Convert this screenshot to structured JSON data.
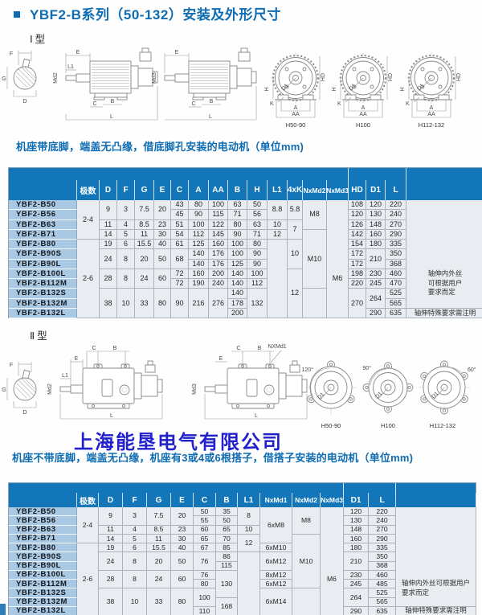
{
  "title": {
    "text": "YBF2-B系列（50-132）安装及外形尺寸"
  },
  "sections": {
    "type1_label": "Ⅰ型",
    "type2_label": "Ⅱ型",
    "caption1": "机座带底脚，端盖无凸缘，借底脚孔安装的电动机（单位mm)",
    "caption2": "机座不带底脚，端盖无凸缘，机座有3或4或6根搭子，借搭子安装的电动机（单位mm)",
    "company": "上海能垦电气有限公司"
  },
  "drawing1": {
    "shaft": {
      "f": "F",
      "g": "G",
      "d": "D"
    },
    "motor1": {
      "e": "E",
      "l1": "L1",
      "md": "Md2",
      "c": "C",
      "b": "B",
      "l": "L"
    },
    "motor2": {
      "e": "E",
      "md": "Md3",
      "c": "C",
      "b": "B",
      "l": "L"
    },
    "views": [
      {
        "h": "H",
        "k": "K",
        "a": "A",
        "aa": "AA",
        "hd": "HD",
        "d1": "D1",
        "caption": "H50-90"
      },
      {
        "h": "H",
        "k": "K",
        "a": "A",
        "aa": "AA",
        "hd": "HD",
        "d1": "D1",
        "caption": "H100"
      },
      {
        "h": "H",
        "k": "K",
        "a": "A",
        "aa": "AA",
        "hd": "HD",
        "d1": "D1",
        "caption": "H112-132"
      }
    ]
  },
  "drawing2": {
    "shaft": {
      "f": "F",
      "g": "G",
      "d": "D"
    },
    "motor1": {
      "e": "E",
      "l1": "L1",
      "md": "Md2",
      "c": "C",
      "b": "B",
      "l": "L"
    },
    "motor2": {
      "e": "E",
      "md": "Md3",
      "c": "C",
      "b": "B",
      "l": "L",
      "nxmd1": "NXMd1"
    },
    "views": [
      {
        "angle": "120°",
        "d1": "D1",
        "caption": "H50-90"
      },
      {
        "angle": "90°",
        "d1": "D1",
        "caption": "H100"
      },
      {
        "angle": "60°",
        "d1": "D1",
        "caption": "H112-132"
      }
    ]
  },
  "table1": {
    "name": "type1-dimensions-table",
    "columns": [
      {
        "key": "model",
        "label": ""
      },
      {
        "key": "jishu",
        "label": "极数"
      },
      {
        "key": "D",
        "label": "D"
      },
      {
        "key": "F",
        "label": "F"
      },
      {
        "key": "G",
        "label": "G"
      },
      {
        "key": "E",
        "label": "E"
      },
      {
        "key": "C",
        "label": "C"
      },
      {
        "key": "A",
        "label": "A"
      },
      {
        "key": "AA",
        "label": "AA"
      },
      {
        "key": "B",
        "label": "B"
      },
      {
        "key": "H",
        "label": "H"
      },
      {
        "key": "L1",
        "label": "L1"
      },
      {
        "key": "K4",
        "label": "4xK"
      },
      {
        "key": "NxMd2",
        "label": "NxMd2"
      },
      {
        "key": "NxMd3",
        "label": "NxMd3"
      },
      {
        "key": "HD",
        "label": "HD"
      },
      {
        "key": "D1",
        "label": "D1"
      },
      {
        "key": "L",
        "label": "L"
      },
      {
        "key": "remark",
        "label": ""
      }
    ],
    "models": [
      "YBF2-B50",
      "YBF2-B56",
      "YBF2-B63",
      "YBF2-B71",
      "YBF2-B80",
      "YBF2-B90S",
      "YBF2-B90L",
      "YBF2-B100L",
      "YBF2-B112M",
      "YBF2-B132S",
      "YBF2-B132M",
      "YBF2-B132L"
    ],
    "cells": {
      "jishu": [
        {
          "v": "2-4",
          "s": 4
        },
        {
          "v": "2-6",
          "s": 8
        }
      ],
      "D": [
        {
          "v": "9",
          "s": 2
        },
        {
          "v": "11"
        },
        {
          "v": "14"
        },
        {
          "v": "19"
        },
        {
          "v": "24",
          "s": 2
        },
        {
          "v": "28",
          "s": 2
        },
        {
          "v": "38",
          "s": 3
        }
      ],
      "F": [
        {
          "v": "3",
          "s": 2
        },
        {
          "v": "4"
        },
        {
          "v": "5"
        },
        {
          "v": "6"
        },
        {
          "v": "8",
          "s": 2
        },
        {
          "v": "8",
          "s": 2
        },
        {
          "v": "10",
          "s": 3
        }
      ],
      "G": [
        {
          "v": "7.5",
          "s": 2
        },
        {
          "v": "8.5"
        },
        {
          "v": "11"
        },
        {
          "v": "15.5"
        },
        {
          "v": "20",
          "s": 2
        },
        {
          "v": "24",
          "s": 2
        },
        {
          "v": "33",
          "s": 3
        }
      ],
      "E": [
        {
          "v": "20",
          "s": 2
        },
        {
          "v": "23"
        },
        {
          "v": "30"
        },
        {
          "v": "40"
        },
        {
          "v": "50",
          "s": 2
        },
        {
          "v": "60",
          "s": 2
        },
        {
          "v": "80",
          "s": 3
        }
      ],
      "C": [
        {
          "v": "43"
        },
        {
          "v": "45"
        },
        {
          "v": "51"
        },
        {
          "v": "54"
        },
        {
          "v": "61"
        },
        {
          "v": "68",
          "s": 2
        },
        {
          "v": "72"
        },
        {
          "v": "72"
        },
        {
          "v": "90",
          "s": 3
        }
      ],
      "A": [
        {
          "v": "80"
        },
        {
          "v": "90"
        },
        {
          "v": "100"
        },
        {
          "v": "112"
        },
        {
          "v": "125"
        },
        {
          "v": "140"
        },
        {
          "v": "140"
        },
        {
          "v": "160"
        },
        {
          "v": "190"
        },
        {
          "v": "216",
          "s": 3
        }
      ],
      "AA": [
        {
          "v": "100"
        },
        {
          "v": "115"
        },
        {
          "v": "122"
        },
        {
          "v": "145"
        },
        {
          "v": "160"
        },
        {
          "v": "176"
        },
        {
          "v": "176"
        },
        {
          "v": "200"
        },
        {
          "v": "240"
        },
        {
          "v": "276",
          "s": 3
        }
      ],
      "B": [
        {
          "v": "63"
        },
        {
          "v": "71"
        },
        {
          "v": "80"
        },
        {
          "v": "90"
        },
        {
          "v": "100"
        },
        {
          "v": "100"
        },
        {
          "v": "125"
        },
        {
          "v": "140"
        },
        {
          "v": "140"
        },
        {
          "v": "140"
        },
        {
          "v": "178"
        },
        {
          "v": "200"
        }
      ],
      "H": [
        {
          "v": "50"
        },
        {
          "v": "56"
        },
        {
          "v": "63"
        },
        {
          "v": "71"
        },
        {
          "v": "80"
        },
        {
          "v": "90"
        },
        {
          "v": "90"
        },
        {
          "v": "100"
        },
        {
          "v": "112"
        },
        {
          "v": "132",
          "s": 3
        }
      ],
      "L1": [
        {
          "v": "8.8",
          "s": 2
        },
        {
          "v": "10"
        },
        {
          "v": "12"
        },
        {
          "v": "",
          "s": 8
        }
      ],
      "K4": [
        {
          "v": "5.8",
          "s": 2
        },
        {
          "v": "7",
          "s": 2
        },
        {
          "v": "10",
          "s": 3
        },
        {
          "v": "12",
          "s": 5
        }
      ],
      "NxMd2": [
        {
          "v": "M8",
          "s": 3
        },
        {
          "v": "M10",
          "s": 6
        },
        {
          "v": "",
          "s": 3
        }
      ],
      "NxMd3": [
        {
          "v": "",
          "s": 4,
          "nb": true
        },
        {
          "v": "M6",
          "s": 8
        }
      ],
      "HD": [
        {
          "v": "108"
        },
        {
          "v": "120"
        },
        {
          "v": "126"
        },
        {
          "v": "142"
        },
        {
          "v": "154"
        },
        {
          "v": "172"
        },
        {
          "v": "172"
        },
        {
          "v": "198"
        },
        {
          "v": "220"
        },
        {
          "v": "270",
          "s": 3
        }
      ],
      "D1": [
        {
          "v": "120"
        },
        {
          "v": "130"
        },
        {
          "v": "148"
        },
        {
          "v": "160"
        },
        {
          "v": "180"
        },
        {
          "v": "210",
          "s": 2
        },
        {
          "v": "230"
        },
        {
          "v": "245"
        },
        {
          "v": "264",
          "s": 2
        },
        {
          "v": "290"
        }
      ],
      "L": [
        {
          "v": "220"
        },
        {
          "v": "240"
        },
        {
          "v": "270"
        },
        {
          "v": "290"
        },
        {
          "v": "335"
        },
        {
          "v": "350"
        },
        {
          "v": "368"
        },
        {
          "v": "460"
        },
        {
          "v": "470"
        },
        {
          "v": "525"
        },
        {
          "v": "565"
        },
        {
          "v": "635"
        }
      ],
      "remark": [
        {
          "v": "",
          "s": 6,
          "nb": true
        },
        {
          "v": "轴伸内外丝\n可根据用户\n要求而定",
          "s": 5
        },
        {
          "v": "轴伸特殊要求需注明"
        }
      ]
    }
  },
  "table2": {
    "name": "type2-dimensions-table",
    "columns": [
      {
        "key": "model",
        "label": ""
      },
      {
        "key": "jishu",
        "label": "极数"
      },
      {
        "key": "D",
        "label": "D"
      },
      {
        "key": "F",
        "label": "F"
      },
      {
        "key": "G",
        "label": "G"
      },
      {
        "key": "E",
        "label": "E"
      },
      {
        "key": "C",
        "label": "C"
      },
      {
        "key": "B",
        "label": "B"
      },
      {
        "key": "L1",
        "label": "L1"
      },
      {
        "key": "NxMd1",
        "label": "NxMd1"
      },
      {
        "key": "NxMd2",
        "label": "NxMd2"
      },
      {
        "key": "NxMd3",
        "label": "NxMd3"
      },
      {
        "key": "D1",
        "label": "D1"
      },
      {
        "key": "L",
        "label": "L"
      },
      {
        "key": "remark",
        "label": ""
      }
    ],
    "models": [
      "YBF2-B50",
      "YBF2-B56",
      "YBF2-B63",
      "YBF2-B71",
      "YBF2-B80",
      "YBF2-B90S",
      "YBF2-B90L",
      "YBF2-B100L",
      "YBF2-B112M",
      "YBF2-B132S",
      "YBF2-B132M",
      "YBF2-B132L"
    ],
    "cells": {
      "jishu": [
        {
          "v": "2-4",
          "s": 4
        },
        {
          "v": "2-6",
          "s": 8
        }
      ],
      "D": [
        {
          "v": "9",
          "s": 2
        },
        {
          "v": "11"
        },
        {
          "v": "14"
        },
        {
          "v": "19"
        },
        {
          "v": "24",
          "s": 2
        },
        {
          "v": "28",
          "s": 2
        },
        {
          "v": "38",
          "s": 3
        }
      ],
      "F": [
        {
          "v": "3",
          "s": 2
        },
        {
          "v": "4"
        },
        {
          "v": "5"
        },
        {
          "v": "6"
        },
        {
          "v": "8",
          "s": 2
        },
        {
          "v": "8",
          "s": 2
        },
        {
          "v": "10",
          "s": 3
        }
      ],
      "G": [
        {
          "v": "7.5",
          "s": 2
        },
        {
          "v": "8.5"
        },
        {
          "v": "11"
        },
        {
          "v": "15.5"
        },
        {
          "v": "20",
          "s": 2
        },
        {
          "v": "24",
          "s": 2
        },
        {
          "v": "33",
          "s": 3
        }
      ],
      "E": [
        {
          "v": "20",
          "s": 2
        },
        {
          "v": "23"
        },
        {
          "v": "30"
        },
        {
          "v": "40"
        },
        {
          "v": "50",
          "s": 2
        },
        {
          "v": "60",
          "s": 2
        },
        {
          "v": "80",
          "s": 3
        }
      ],
      "C": [
        {
          "v": "50"
        },
        {
          "v": "55"
        },
        {
          "v": "60"
        },
        {
          "v": "65"
        },
        {
          "v": "67"
        },
        {
          "v": "76",
          "s": 2
        },
        {
          "v": "76"
        },
        {
          "v": "80"
        },
        {
          "v": "100",
          "s": 2
        },
        {
          "v": "110"
        }
      ],
      "B": [
        {
          "v": "35"
        },
        {
          "v": "50"
        },
        {
          "v": "65"
        },
        {
          "v": "70"
        },
        {
          "v": "85"
        },
        {
          "v": "86"
        },
        {
          "v": "115"
        },
        {
          "v": "130",
          "s": 3
        },
        {
          "v": "168",
          "s": 2
        }
      ],
      "L1": [
        {
          "v": "8",
          "s": 2
        },
        {
          "v": "10"
        },
        {
          "v": "12",
          "s": 2
        },
        {
          "v": "",
          "s": 7
        }
      ],
      "NxMd1": [
        {
          "v": "6xM8",
          "s": 4
        },
        {
          "v": "6xM10"
        },
        {
          "v": "6xM12",
          "s": 2
        },
        {
          "v": "8xM12"
        },
        {
          "v": "6xM12"
        },
        {
          "v": "6xM14",
          "s": 3
        }
      ],
      "NxMd2": [
        {
          "v": "M8",
          "s": 3
        },
        {
          "v": "M10",
          "s": 6
        },
        {
          "v": "",
          "s": 3
        }
      ],
      "NxMd3": [
        {
          "v": "",
          "s": 4,
          "nb": true
        },
        {
          "v": "M6",
          "s": 8
        }
      ],
      "D1": [
        {
          "v": "120"
        },
        {
          "v": "130"
        },
        {
          "v": "148"
        },
        {
          "v": "160"
        },
        {
          "v": "180"
        },
        {
          "v": "210",
          "s": 2
        },
        {
          "v": "230"
        },
        {
          "v": "245"
        },
        {
          "v": "264",
          "s": 2
        },
        {
          "v": "290"
        }
      ],
      "L": [
        {
          "v": "220"
        },
        {
          "v": "240"
        },
        {
          "v": "270"
        },
        {
          "v": "290"
        },
        {
          "v": "335"
        },
        {
          "v": "350"
        },
        {
          "v": "368"
        },
        {
          "v": "460"
        },
        {
          "v": "485"
        },
        {
          "v": "525"
        },
        {
          "v": "565"
        },
        {
          "v": "635"
        }
      ],
      "remark": [
        {
          "v": "",
          "s": 7,
          "nb": true
        },
        {
          "v": "轴伸内外丝可根据用户\n要求而定",
          "s": 4
        },
        {
          "v": "轴伸特殊要求需注明"
        }
      ]
    }
  }
}
